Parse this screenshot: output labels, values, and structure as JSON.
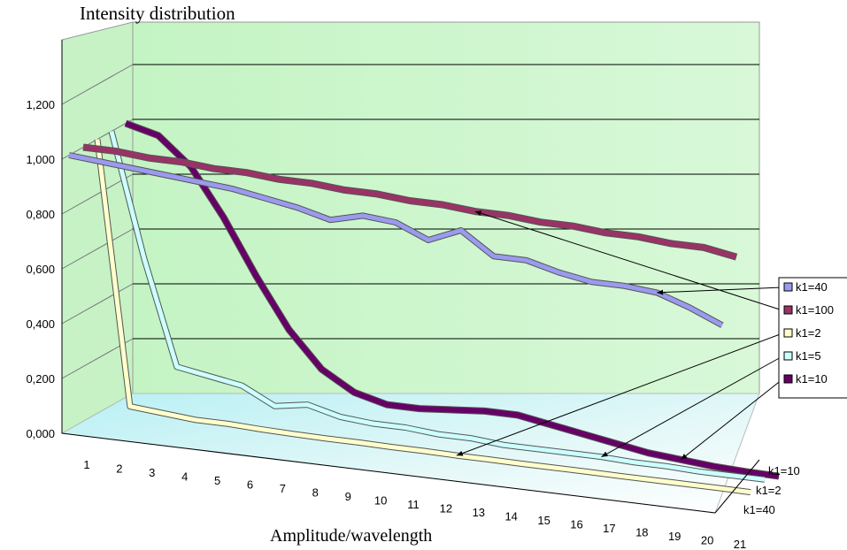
{
  "chart_data": {
    "type": "line",
    "title": "Intensity distribution",
    "xlabel": "Amplitude/wavelength",
    "ylabel": "",
    "ylim": [
      0,
      1.2
    ],
    "y_ticks": [
      "0,000",
      "0,200",
      "0,400",
      "0,600",
      "0,800",
      "1,000",
      "1,200"
    ],
    "categories": [
      "1",
      "2",
      "3",
      "4",
      "5",
      "6",
      "7",
      "8",
      "9",
      "10",
      "11",
      "12",
      "13",
      "14",
      "15",
      "16",
      "17",
      "18",
      "19",
      "20",
      "21"
    ],
    "depth_labels": [
      "k1=10",
      "k1=2",
      "k1=40"
    ],
    "legend_position": "right",
    "grid": true,
    "series": [
      {
        "name": "k1=40",
        "color": "#9a9aee",
        "values": [
          1.0,
          0.99,
          0.98,
          0.97,
          0.96,
          0.95,
          0.93,
          0.91,
          0.88,
          0.91,
          0.9,
          0.85,
          0.9,
          0.82,
          0.82,
          0.79,
          0.77,
          0.77,
          0.76,
          0.72,
          0.67
        ]
      },
      {
        "name": "k1=100",
        "color": "#993366",
        "values": [
          1.0,
          1.0,
          0.99,
          0.99,
          0.98,
          0.98,
          0.97,
          0.97,
          0.96,
          0.96,
          0.95,
          0.95,
          0.94,
          0.94,
          0.93,
          0.93,
          0.92,
          0.92,
          0.91,
          0.91,
          0.89
        ]
      },
      {
        "name": "k1=2",
        "color": "#ffffcc",
        "values": [
          1.0,
          0.04,
          0.03,
          0.02,
          0.02,
          0.015,
          0.012,
          0.01,
          0.01,
          0.008,
          0.008,
          0.006,
          0.006,
          0.005,
          0.005,
          0.005,
          0.004,
          0.004,
          0.004,
          0.004,
          0.003
        ]
      },
      {
        "name": "k1=5",
        "color": "#ccffff",
        "values": [
          1.0,
          0.55,
          0.17,
          0.15,
          0.13,
          0.07,
          0.09,
          0.06,
          0.05,
          0.05,
          0.04,
          0.04,
          0.03,
          0.03,
          0.03,
          0.03,
          0.025,
          0.025,
          0.02,
          0.02,
          0.02
        ]
      },
      {
        "name": "k1=10",
        "color": "#660066",
        "values": [
          1.0,
          0.97,
          0.87,
          0.7,
          0.5,
          0.32,
          0.19,
          0.12,
          0.09,
          0.09,
          0.1,
          0.11,
          0.11,
          0.09,
          0.07,
          0.05,
          0.03,
          0.02,
          0.01,
          0.005,
          0.003
        ]
      }
    ],
    "callouts": [
      {
        "series": "k1=40",
        "target": 18
      },
      {
        "series": "k1=100",
        "target": 12
      },
      {
        "series": "k1=2",
        "target": 11
      },
      {
        "series": "k1=5",
        "target": 15
      },
      {
        "series": "k1=10",
        "target": 17
      }
    ]
  }
}
